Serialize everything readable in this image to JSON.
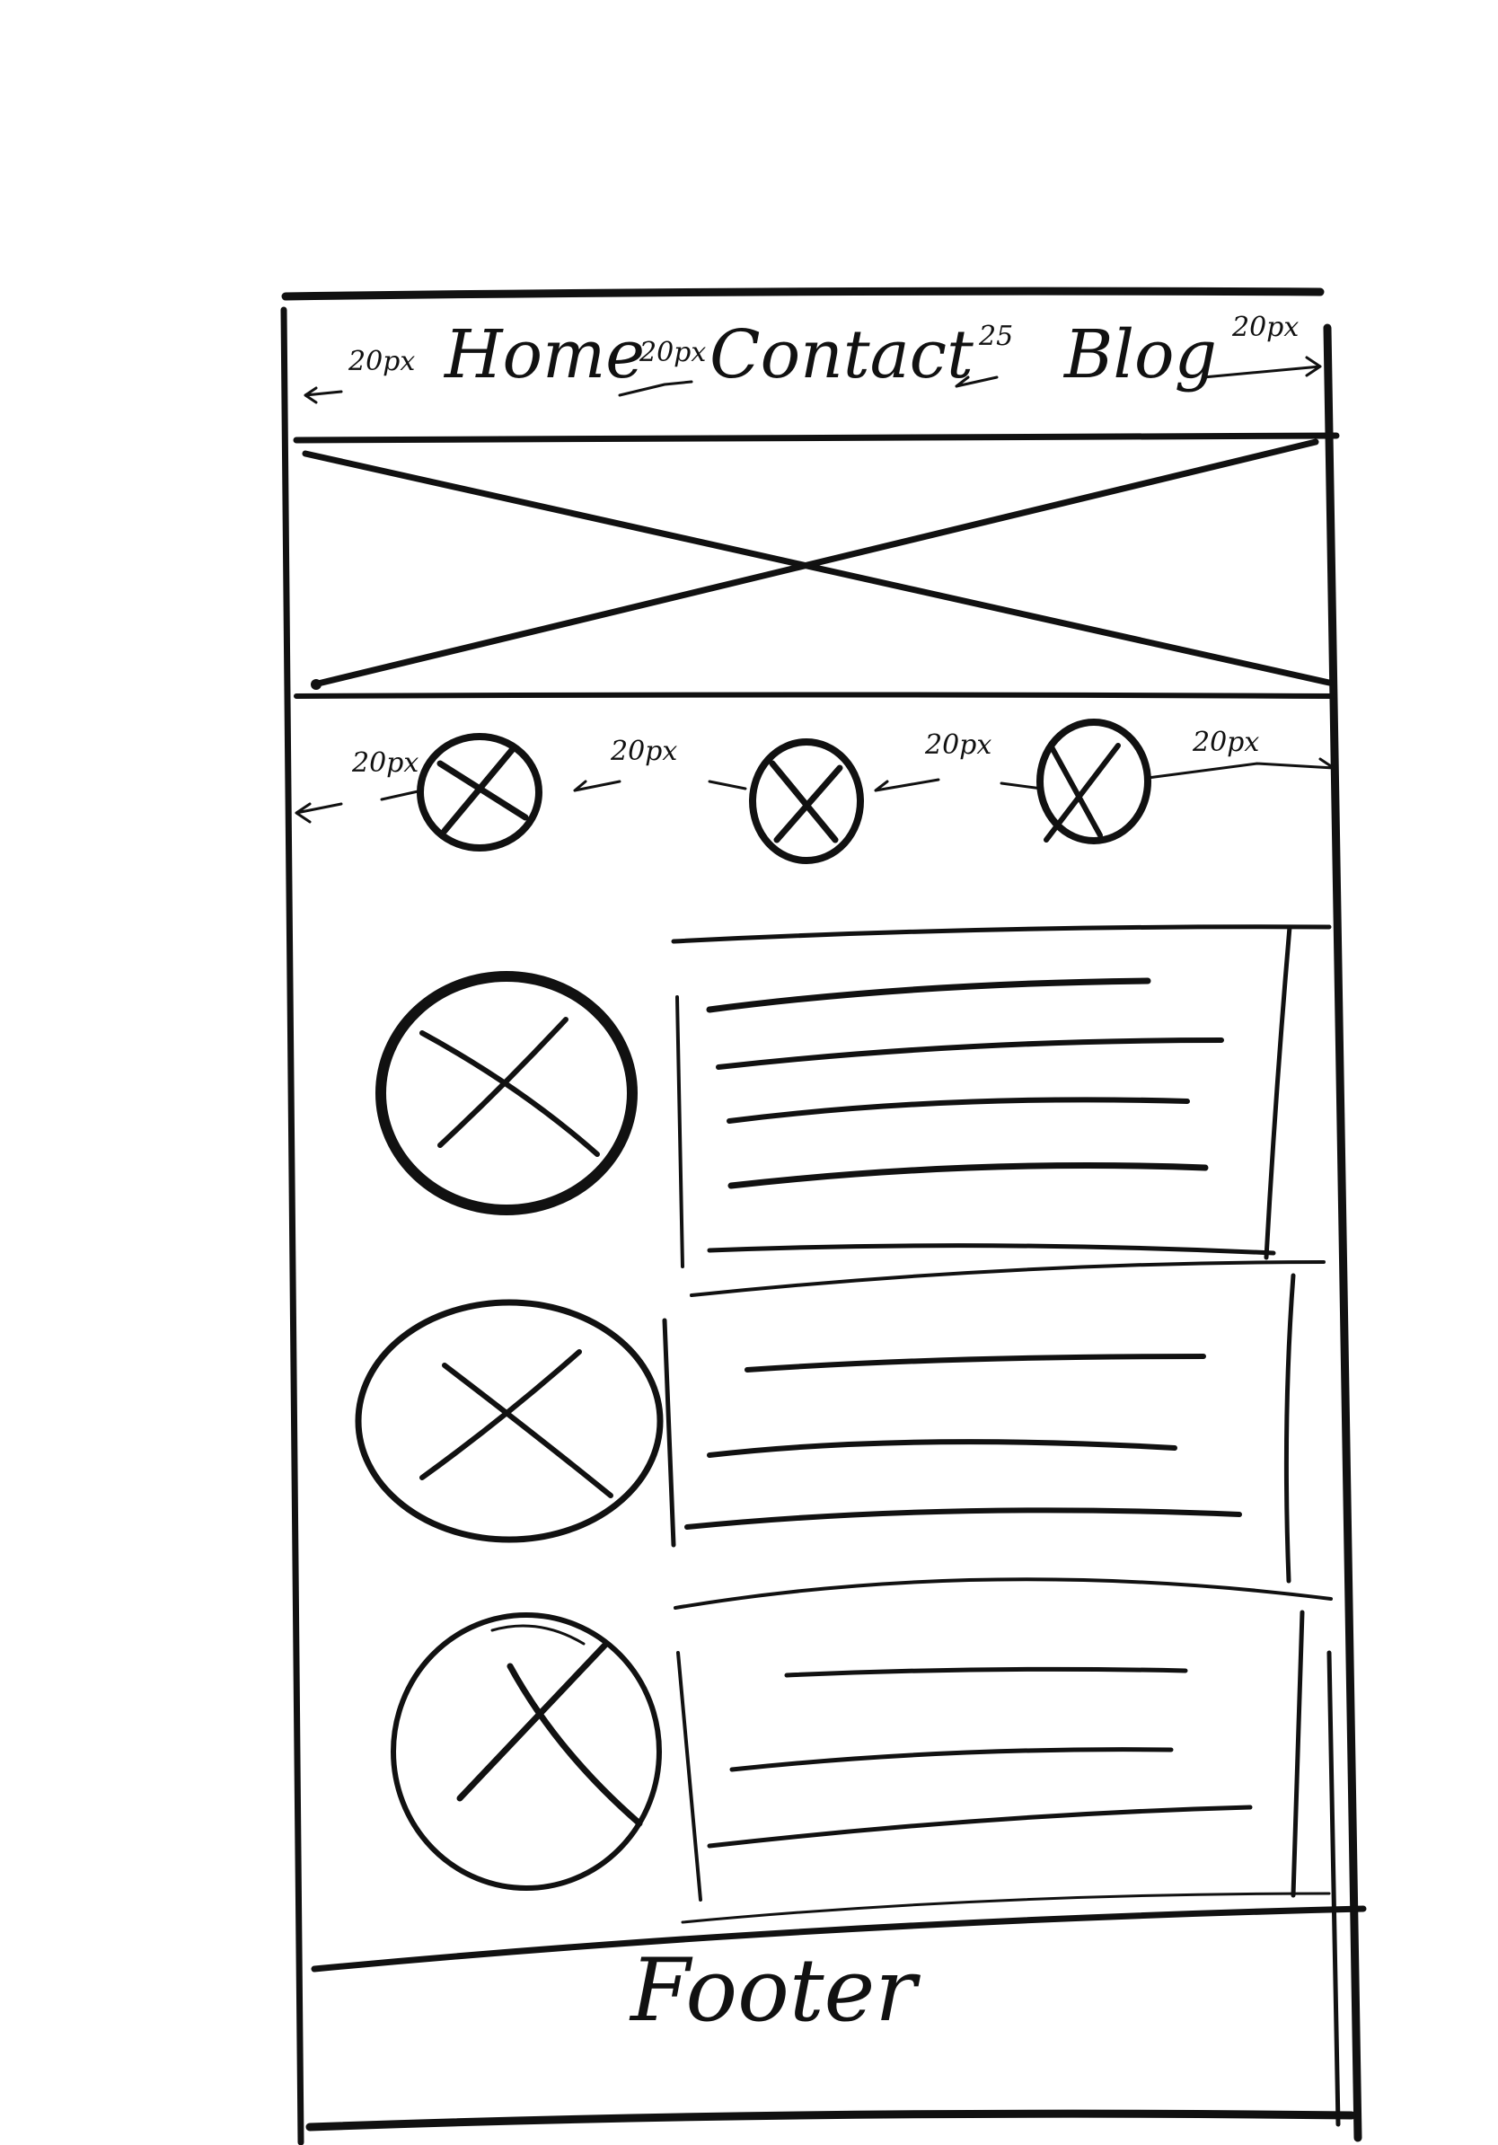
{
  "nav": {
    "items": [
      "Home",
      "Contact",
      "Blog"
    ],
    "spacing_notes": [
      "20px",
      "20px",
      "25",
      "20px"
    ]
  },
  "icon_row": {
    "spacing_notes": [
      "20px",
      "20px",
      "20px",
      "20px"
    ]
  },
  "footer": {
    "label": "Footer"
  },
  "colors": {
    "ink": "#111111",
    "paper": "#ffffff"
  }
}
